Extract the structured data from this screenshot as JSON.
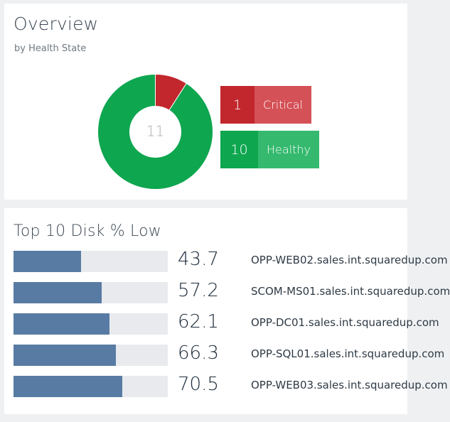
{
  "overview": {
    "title": "Overview",
    "subtitle": "by Health State",
    "total": "11",
    "states": [
      {
        "label": "Critical",
        "count": 1,
        "count_text": "1",
        "color": "#c1272d",
        "label_color": "#d45157"
      },
      {
        "label": "Healthy",
        "count": 10,
        "count_text": "10",
        "color": "#0ea64f",
        "label_color": "#34b96e"
      }
    ],
    "total_color": "#a9aeb3"
  },
  "disk": {
    "title": "Top 10 Disk % Low",
    "bar_color": "#587ba3",
    "track_color": "#e8eaed",
    "rows": [
      {
        "value": 43.7,
        "value_text": "43.7",
        "name": "OPP-WEB02.sales.int.squaredup.com"
      },
      {
        "value": 57.2,
        "value_text": "57.2",
        "name": "SCOM-MS01.sales.int.squaredup.com"
      },
      {
        "value": 62.1,
        "value_text": "62.1",
        "name": "OPP-DC01.sales.int.squaredup.com"
      },
      {
        "value": 66.3,
        "value_text": "66.3",
        "name": "OPP-SQL01.sales.int.squaredup.com"
      },
      {
        "value": 70.5,
        "value_text": "70.5",
        "name": "OPP-WEB03.sales.int.squaredup.com"
      }
    ]
  }
}
